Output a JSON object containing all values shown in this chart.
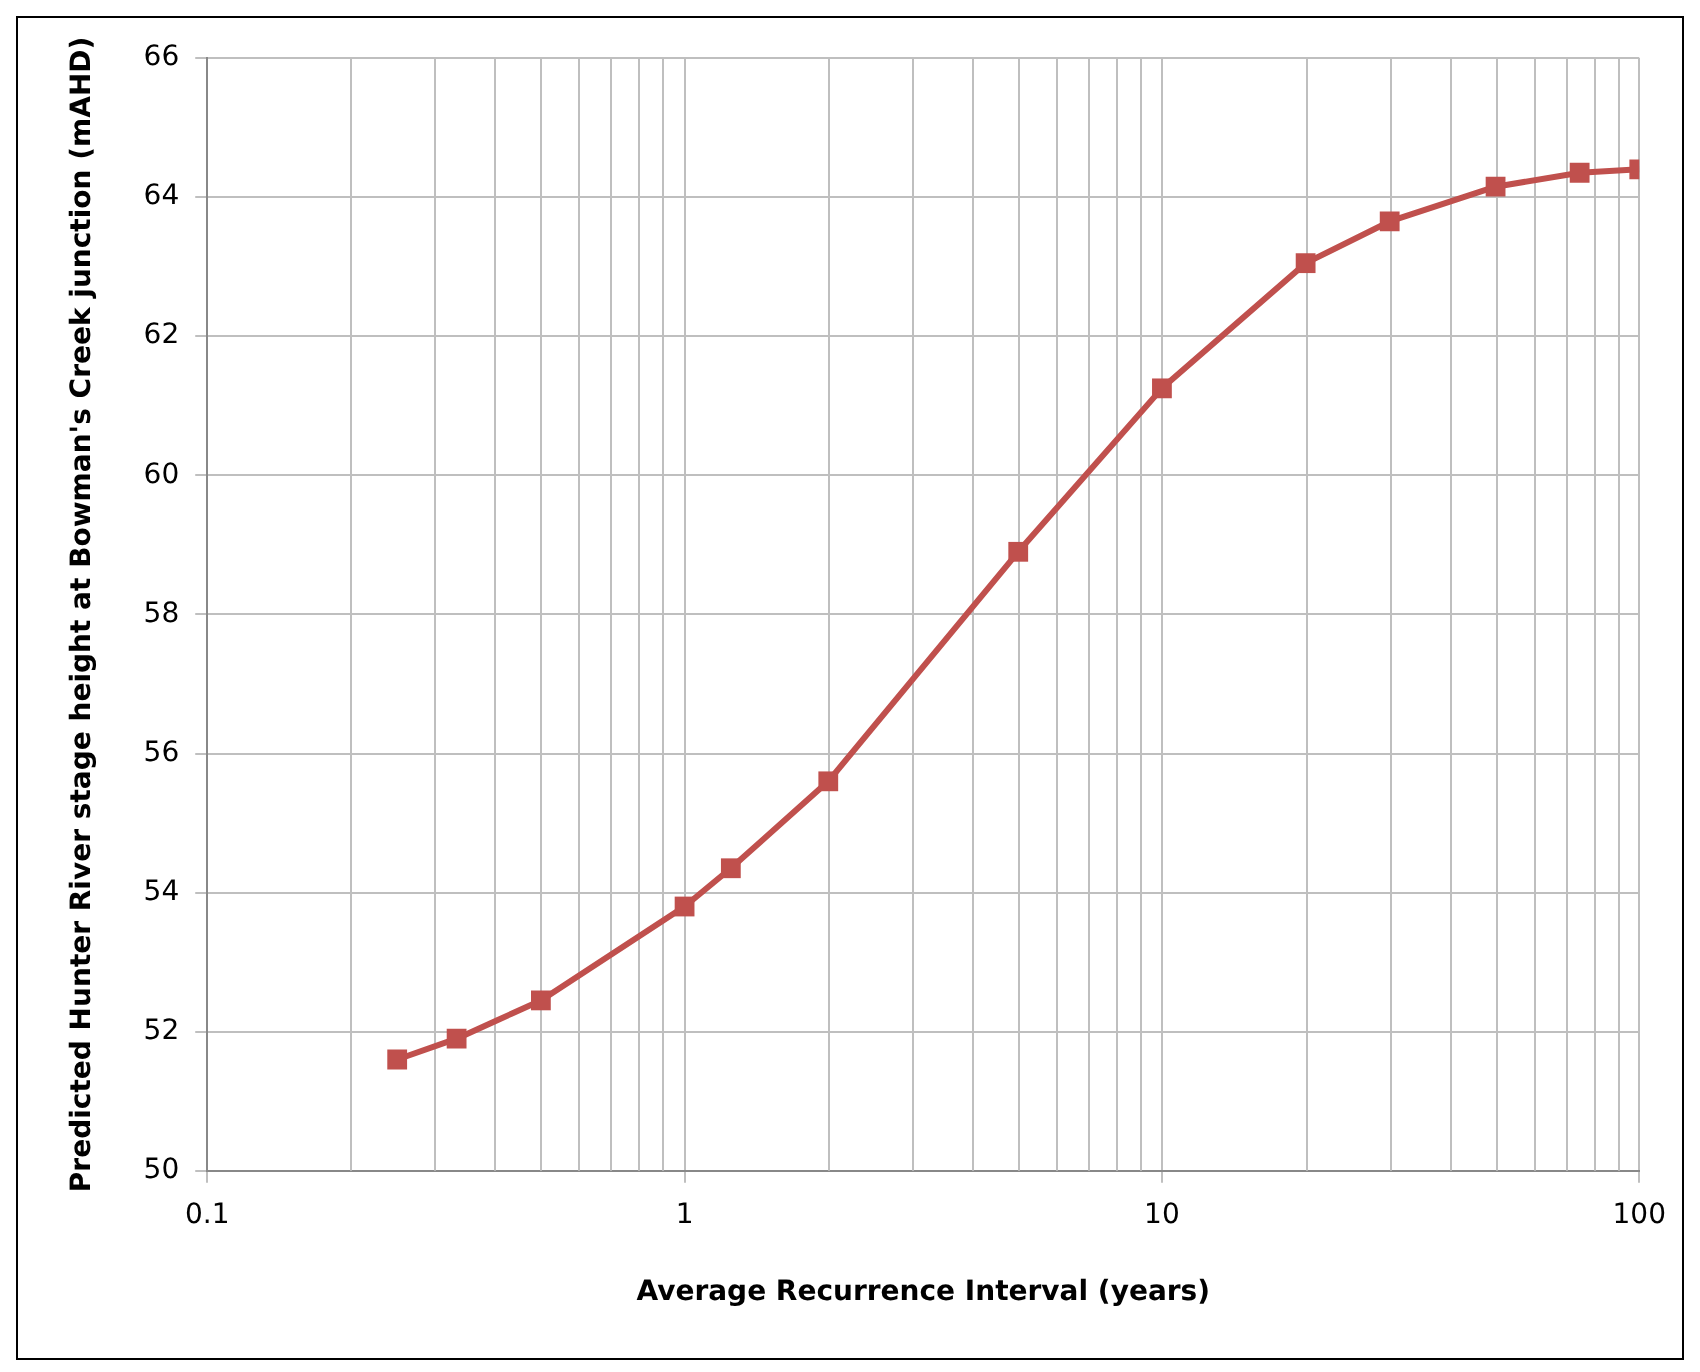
{
  "chart_data": {
    "type": "line",
    "xlabel": "Average Recurrence Interval (years)",
    "ylabel": "Predicted Hunter River stage height at Bowman's Creek junction (mAHD)",
    "x": [
      0.25,
      0.333,
      0.5,
      1,
      1.25,
      2,
      5,
      10,
      20,
      30,
      50,
      75,
      100
    ],
    "series": [
      {
        "color": "#c0504d",
        "values": [
          51.6,
          51.9,
          52.45,
          53.8,
          54.35,
          55.6,
          58.9,
          61.25,
          63.05,
          63.65,
          64.15,
          64.35,
          64.4
        ]
      }
    ],
    "xlim": [
      0.1,
      100
    ],
    "xticks": [
      0.1,
      1,
      10,
      100
    ],
    "ylim": [
      50,
      66
    ],
    "yticks": [
      50,
      52,
      54,
      56,
      58,
      60,
      62,
      64,
      66
    ],
    "log": "x",
    "grid": true,
    "legend": false,
    "marker": "square",
    "line_style": "solid"
  }
}
